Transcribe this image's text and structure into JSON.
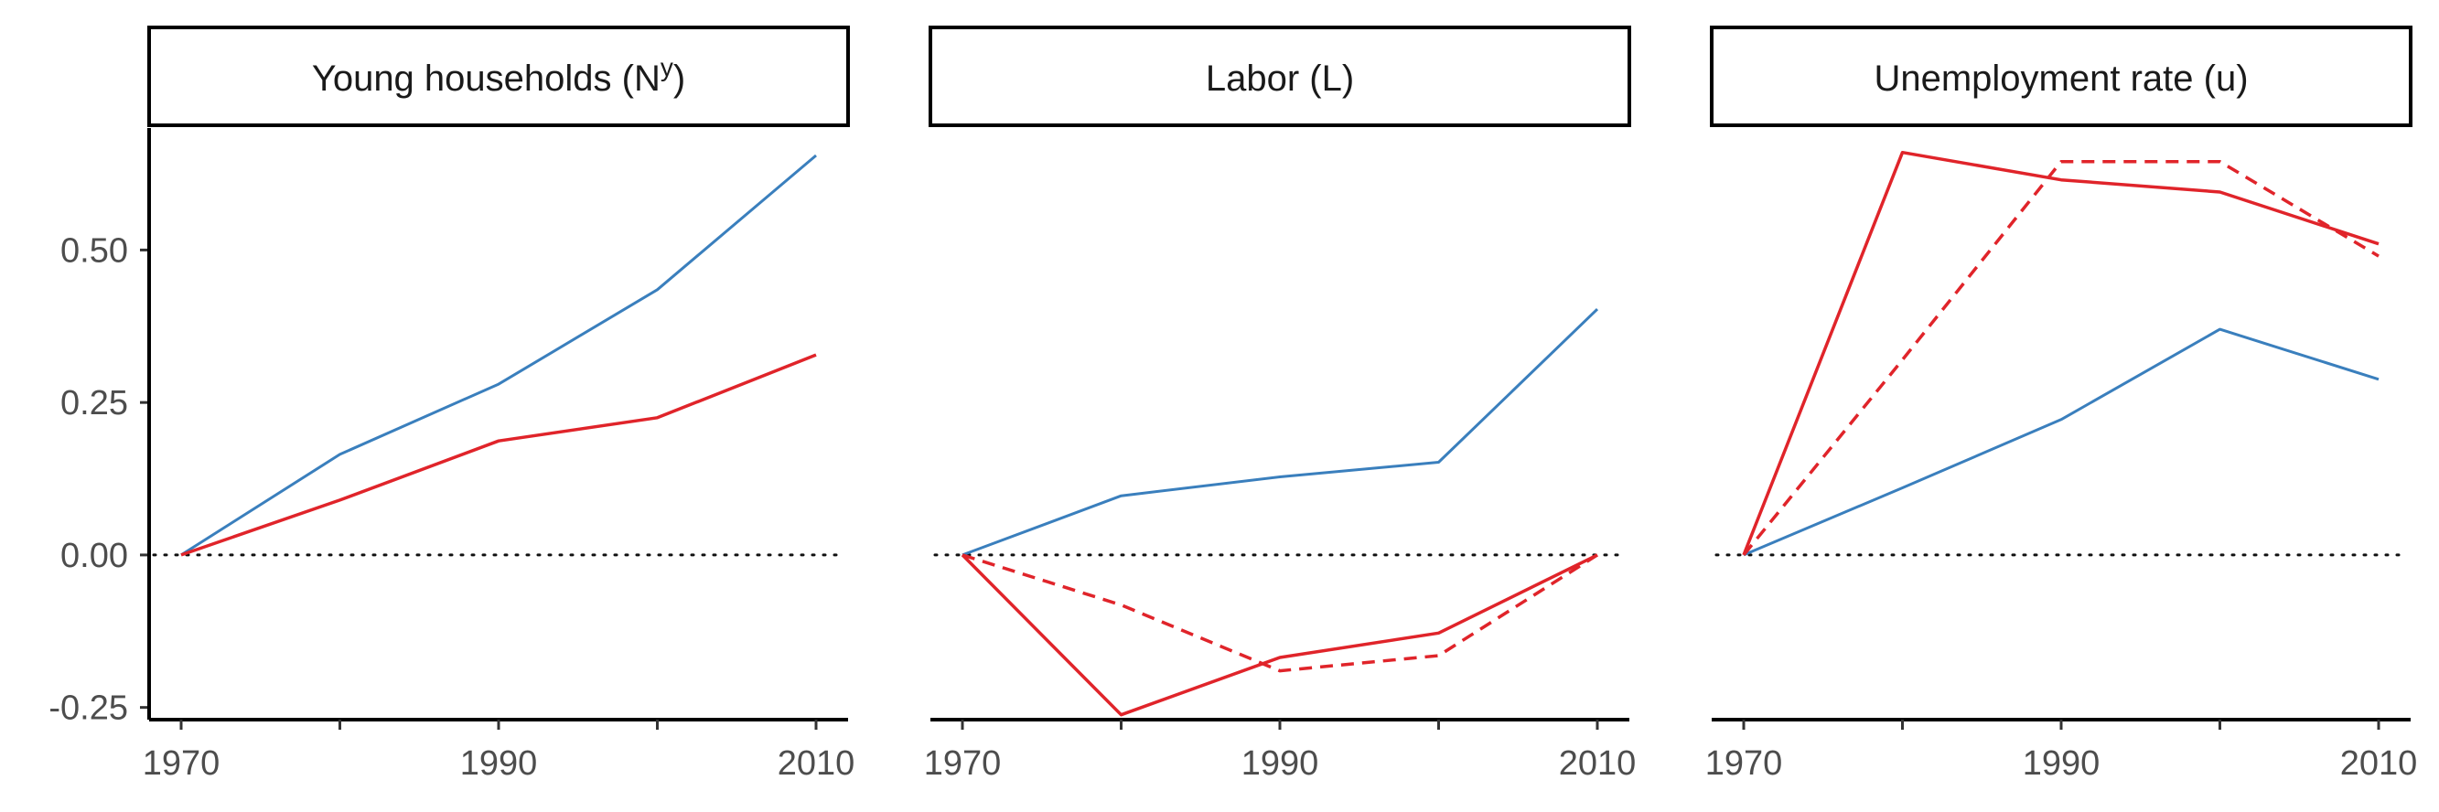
{
  "chart_data": [
    {
      "type": "line",
      "facet_title": "Young households (N",
      "facet_title_sup": "y",
      "facet_title_close": ")",
      "x": [
        1970,
        1980,
        1990,
        2000,
        2010
      ],
      "x_ticks": [
        "1970",
        "1990",
        "2010"
      ],
      "xlim": [
        1970,
        2010
      ],
      "ylim": [
        -0.27,
        0.7
      ],
      "y_ticks": [
        "0.50",
        "0.25",
        "0.00",
        "-0.25"
      ],
      "series": [
        {
          "color": "#3a7fbd",
          "dash": "solid",
          "values": [
            0.0,
            0.165,
            0.28,
            0.435,
            0.655
          ]
        },
        {
          "color": "#e0242a",
          "dash": "solid",
          "values": [
            0.0,
            0.09,
            0.187,
            0.225,
            0.328
          ]
        }
      ]
    },
    {
      "type": "line",
      "facet_title": "Labor (L)",
      "x": [
        1970,
        1980,
        1990,
        2000,
        2010
      ],
      "x_ticks": [
        "1970",
        "1990",
        "2010"
      ],
      "xlim": [
        1970,
        2010
      ],
      "ylim": [
        -0.27,
        0.7
      ],
      "series": [
        {
          "color": "#3a7fbd",
          "dash": "solid",
          "values": [
            0.0,
            0.097,
            0.128,
            0.152,
            0.403
          ]
        },
        {
          "color": "#e0242a",
          "dash": "solid",
          "values": [
            0.0,
            -0.262,
            -0.168,
            -0.128,
            0.0
          ]
        },
        {
          "color": "#e0242a",
          "dash": "dashed",
          "values": [
            0.0,
            -0.082,
            -0.19,
            -0.165,
            0.0
          ]
        }
      ]
    },
    {
      "type": "line",
      "facet_title": "Unemployment rate (u)",
      "x": [
        1970,
        1980,
        1990,
        2000,
        2010
      ],
      "x_ticks": [
        "1970",
        "1990",
        "2010"
      ],
      "xlim": [
        1970,
        2010
      ],
      "ylim": [
        -0.27,
        0.7
      ],
      "series": [
        {
          "color": "#3a7fbd",
          "dash": "solid",
          "values": [
            0.0,
            0.11,
            0.222,
            0.37,
            0.288
          ]
        },
        {
          "color": "#e0242a",
          "dash": "solid",
          "values": [
            0.0,
            0.66,
            0.615,
            0.595,
            0.51
          ]
        },
        {
          "color": "#e0242a",
          "dash": "dashed",
          "values": [
            0.0,
            0.32,
            0.645,
            0.645,
            0.49
          ]
        }
      ]
    }
  ]
}
